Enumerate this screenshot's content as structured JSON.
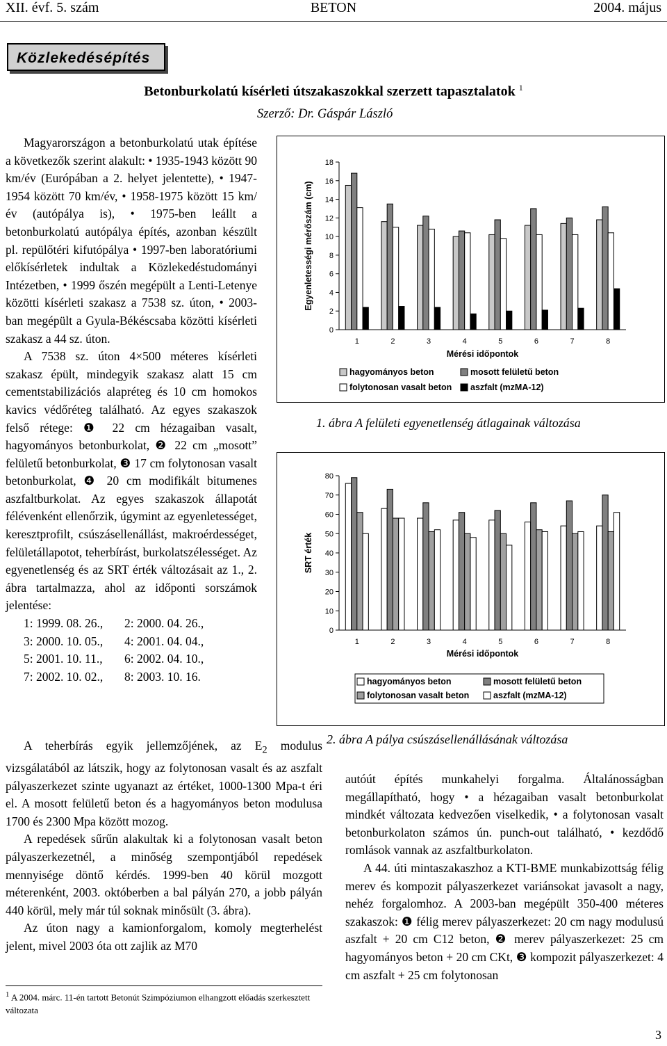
{
  "header": {
    "left": "XII. évf. 5. szám",
    "center": "BETON",
    "right": "2004. május"
  },
  "section": "Közlekedésépítés",
  "title": "Betonburkolatú kísérleti útszakaszokkal szerzett tapasztalatok",
  "title_note": "1",
  "author": "Szerző: Dr. Gáspár László",
  "left_column": [
    "Magyarországon a betonburkolatú utak építése a következők szerint alakult: • 1935-1943 között 90 km/év (Európában a 2. helyet jelentette), • 1947-1954 között 70 km/év, • 1958-1975 között 15 km/év (autópálya is), • 1975-ben leállt a betonburkolatú autópálya építés, azonban készült pl. repülőtéri kifutópálya • 1997-ben laboratóriumi előkísérletek indultak a Közlekedéstudományi Intézetben, • 1999 őszén megépült a Lenti-Letenye közötti kísérleti szakasz a 7538 sz. úton, • 2003-ban megépült a Gyula-Békéscsaba közötti kísérleti szakasz a 44 sz. úton.",
    "A 7538 sz. úton 4×500 méteres kísérleti szakasz épült, mindegyik szakasz alatt 15 cm cementstabilizációs alapréteg és 10 cm homokos kavics védőréteg található. Az egyes szakaszok felső rétege: ❶ 22 cm hézagaiban vasalt, hagyományos betonburkolat, ❷ 22 cm „mosott” felületű betonburkolat, ❸ 17 cm folytonosan vasalt betonburkolat, ❹ 20 cm modifikált bitumenes aszfaltburkolat. Az egyes szakaszok állapotát félévenként ellenőrzik, úgymint az egyenletességet, keresztprofilt, csúszásellenállást, makroérdességet, felületállapotot, teherbírást, burkolatszélességet. Az egyenetlenség és az SRT érték változásait az 1., 2. ábra tartalmazza, ahol az időponti sorszámok jelentése:"
  ],
  "dates": [
    "1: 1999. 08. 26.,",
    "2: 2000. 04. 26.,",
    "3: 2000. 10. 05.,",
    "4: 2001. 04. 04.,",
    "5: 2001. 10. 11.,",
    "6: 2002. 04. 10.,",
    "7: 2002. 10. 02.,",
    "8: 2003. 10. 16."
  ],
  "modulus_paragraph": {
    "before": "A teherbírás egyik jellemzőjének, az E",
    "subscript": "2",
    "after": " modulus vizsgálatából az látszik, hogy az folytonosan vasalt és az aszfalt pályaszerkezet szinte ugyanazt az értéket, 1000-1300 Mpa-t éri el. A mosott felületű beton és a hagyományos beton modulusa 1700 és 2300 Mpa között mozog."
  },
  "wide_column": [
    "A repedések sűrűn alakultak ki a folytonosan vasalt beton pályaszerkezetnél, a minőség szempontjából repedések mennyisége döntő kérdés. 1999-ben 40 körül mozgott méterenként, 2003. októberben a bal pályán 270, a jobb pályán 440 körül, mely már túl soknak minősült (3. ábra).",
    "Az úton nagy a kamionforgalom, komoly megterhelést jelent, mivel 2003 óta ott zajlik az M70"
  ],
  "right_column": [
    "autóút építés munkahelyi forgalma. Általánosságban megállapítható, hogy • a hézagaiban vasalt betonburkolat mindkét változata kedvezően viselkedik, • a folytonosan vasalt betonburkolaton számos ún. punch-out található, • kezdődő romlások vannak az aszfaltburkolaton.",
    "A 44. úti mintaszakaszhoz a KTI-BME munkabizottság félig merev és kompozit pályaszerkezet variánsokat javasolt a nagy, nehéz forgalomhoz. A 2003-ban megépült 350-400 méteres szakaszok: ❶ félig merev pályaszerkezet: 20 cm nagy modulusú aszfalt + 20 cm C12 beton, ❷ merev pályaszerkezet: 25 cm hagyományos beton + 20 cm CKt, ❸ kompozit pályaszerkezet: 4 cm aszfalt + 25 cm folytonosan"
  ],
  "captions": [
    "1. ábra   A felületi egyenetlenség átlagainak változása",
    "2. ábra   A pálya csúszásellenállásának változása"
  ],
  "footnote": {
    "mark": "1",
    "text": "A 2004. márc. 11-én tartott Betonút Szimpóziumon elhangzott előadás szerkesztett változata"
  },
  "page_number": "3",
  "chart_data": [
    {
      "type": "bar",
      "ylabel": "Egyenletességi mérőszám (cm)",
      "xlabel": "Mérési időpontok",
      "categories": [
        "1",
        "2",
        "3",
        "4",
        "5",
        "6",
        "7",
        "8"
      ],
      "series": [
        {
          "name": "hagyományos beton",
          "color": "#c8c8c8",
          "values": [
            15.5,
            11.6,
            11.2,
            10.0,
            10.2,
            11.2,
            11.4,
            11.8
          ]
        },
        {
          "name": "mosott felületű beton",
          "color": "#808080",
          "values": [
            16.8,
            13.5,
            12.2,
            10.6,
            11.8,
            13.0,
            12.0,
            13.2
          ]
        },
        {
          "name": "folytonosan vasalt beton",
          "color": "#ffffff",
          "values": [
            13.1,
            11.0,
            10.8,
            10.4,
            9.8,
            10.2,
            10.2,
            10.4
          ]
        },
        {
          "name": "aszfalt (mzMA-12)",
          "color": "#000000",
          "values": [
            2.4,
            2.5,
            2.4,
            1.7,
            2.0,
            2.1,
            2.3,
            4.4
          ]
        }
      ],
      "ylim": [
        0,
        18
      ],
      "yticks": [
        0,
        2,
        4,
        6,
        8,
        10,
        12,
        14,
        16,
        18
      ]
    },
    {
      "type": "bar",
      "ylabel": "SRT érték",
      "xlabel": "Mérési időpontok",
      "categories": [
        "1",
        "2",
        "3",
        "4",
        "5",
        "6",
        "7",
        "8"
      ],
      "series": [
        {
          "name": "hagyományos beton",
          "color": "#ffffff",
          "values": [
            76,
            63,
            58,
            57,
            57,
            56,
            54,
            54
          ]
        },
        {
          "name": "mosott felületű beton",
          "color": "#808080",
          "values": [
            79,
            73,
            66,
            61,
            62,
            66,
            67,
            70
          ]
        },
        {
          "name": "folytonosan vasalt beton",
          "color": "#a0a0a0",
          "values": [
            61,
            58,
            51,
            50,
            50,
            52,
            50,
            51
          ]
        },
        {
          "name": "aszfalt (mzMA-12)",
          "color": "#ffffff",
          "values": [
            50,
            58,
            52,
            48,
            44,
            51,
            51,
            61
          ]
        }
      ],
      "ylim": [
        0,
        80
      ],
      "yticks": [
        0,
        10,
        20,
        30,
        40,
        50,
        60,
        70,
        80
      ]
    }
  ]
}
